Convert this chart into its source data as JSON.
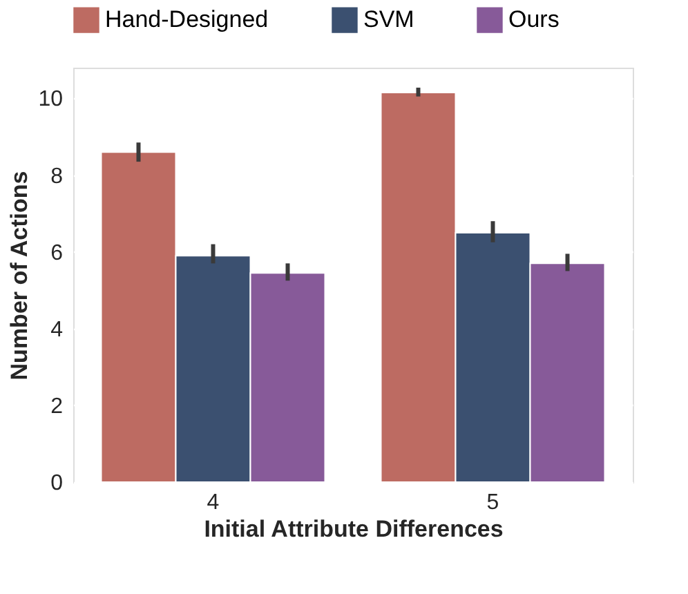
{
  "chart_data": {
    "type": "bar",
    "xlabel": "Initial Attribute Differences",
    "ylabel": "Number of Actions",
    "categories": [
      "4",
      "5"
    ],
    "series": [
      {
        "name": "Hand-Designed",
        "color": "#bd6b62",
        "values": [
          8.6,
          10.15
        ],
        "errors": [
          [
            8.35,
            8.85
          ],
          [
            10.05,
            10.28
          ]
        ]
      },
      {
        "name": "SVM",
        "color": "#3b5070",
        "values": [
          5.9,
          6.5
        ],
        "errors": [
          [
            5.7,
            6.2
          ],
          [
            6.25,
            6.8
          ]
        ]
      },
      {
        "name": "Ours",
        "color": "#875a99",
        "values": [
          5.45,
          5.7
        ],
        "errors": [
          [
            5.25,
            5.7
          ],
          [
            5.5,
            5.95
          ]
        ]
      }
    ],
    "ylim": [
      0,
      10.8
    ],
    "yticks": [
      0,
      2,
      4,
      6,
      8,
      10
    ],
    "grid": "y",
    "legend": "top"
  }
}
